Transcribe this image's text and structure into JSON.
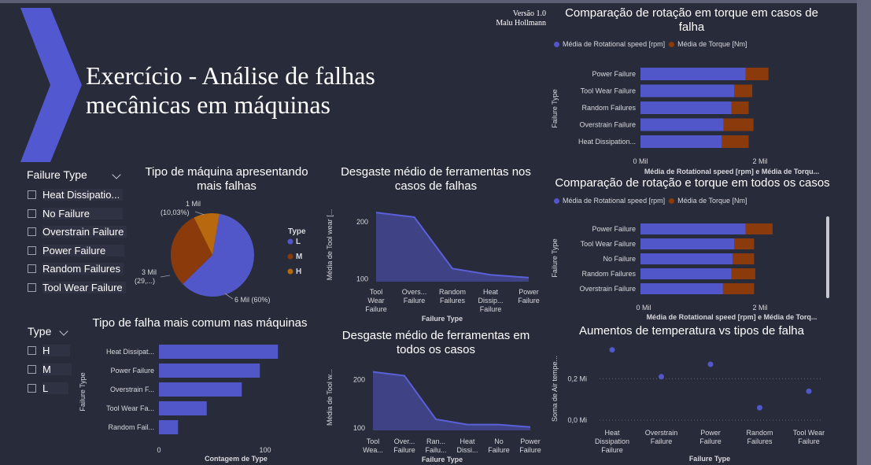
{
  "report": {
    "title_line1": "Exercício - Análise de falhas",
    "title_line2": "mecânicas em máquinas",
    "version": "Versão 1.0",
    "author": "Malu Hollmann"
  },
  "colors": {
    "background": "#282b39",
    "primary": "#5157c8",
    "torque": "#8b3a0c",
    "pie_h": "#b8680e",
    "arrow": "#5258cf"
  },
  "slicer_failure": {
    "header": "Failure Type",
    "items": [
      {
        "label": "Heat Dissipatio..."
      },
      {
        "label": "No Failure"
      },
      {
        "label": "Overstrain Failure"
      },
      {
        "label": "Power Failure"
      },
      {
        "label": "Random Failures"
      },
      {
        "label": "Tool Wear Failure"
      }
    ]
  },
  "slicer_type": {
    "header": "Type",
    "items": [
      {
        "label": "H"
      },
      {
        "label": "M"
      },
      {
        "label": "L"
      }
    ]
  },
  "pie": {
    "title_line1": "Tipo de máquina apresentando",
    "title_line2": "mais falhas",
    "legend_title": "Type",
    "legend": [
      "L",
      "M",
      "H"
    ],
    "label_l": "6 Mil (60%)",
    "label_m_1": "3 Mil",
    "label_m_2": "(29,...)",
    "label_h_1": "1 Mil",
    "label_h_2": "(10,03%)"
  },
  "bar_failtype": {
    "title": "Tipo de falha mais comum nas máquinas",
    "ylabel": "Failure Type",
    "xlabel": "Contagem de Type",
    "ticks": [
      "0",
      "100"
    ],
    "categories": [
      "Heat Dissipat...",
      "Power Failure",
      "Overstrain F...",
      "Tool Wear Fa...",
      "Random Fail..."
    ]
  },
  "area1": {
    "title_line1": "Desgaste médio de ferramentas nos",
    "title_line2": "casos de falhas",
    "ylabel": "Média de Tool wear [...",
    "xlabel": "Failure Type",
    "yticks": [
      "200",
      "100"
    ],
    "categories": [
      [
        "Tool",
        "Wear",
        "Failure"
      ],
      [
        "Overs...",
        "Failure"
      ],
      [
        "Random",
        "Failures"
      ],
      [
        "Heat",
        "Dissip...",
        "Failure"
      ],
      [
        "Power",
        "Failure"
      ]
    ]
  },
  "area2": {
    "title_line1": "Desgaste médio de ferramentas em",
    "title_line2": "todos os casos",
    "ylabel": "Média de Tool w...",
    "xlabel": "Failure Type",
    "yticks": [
      "200",
      "100"
    ],
    "categories": [
      [
        "Tool",
        "Wea..."
      ],
      [
        "Over...",
        "Failure"
      ],
      [
        "Ran...",
        "Failu..."
      ],
      [
        "Heat",
        "Dissi..."
      ],
      [
        "No",
        "Failure"
      ],
      [
        "Power",
        "Failure"
      ]
    ]
  },
  "hbar1": {
    "title_line1": "Comparação de rotação em torque em casos de",
    "title_line2": "falha",
    "legend_a": "Média de Rotational speed [rpm]",
    "legend_b": "Média de Torque [Nm]",
    "ylabel": "Failure Type",
    "xlabel": "Média de Rotational speed [rpm] e Média de Torqu...",
    "ticks": [
      "0 Mil",
      "2 Mil"
    ],
    "categories": [
      "Power Failure",
      "Tool Wear Failure",
      "Random Failures",
      "Overstrain Failure",
      "Heat Dissipation..."
    ]
  },
  "hbar2": {
    "title": "Comparação de rotação e torque em todos os casos",
    "legend_a": "Média de Rotational speed [rpm]",
    "legend_b": "Média de Torque [Nm]",
    "ylabel": "Failure Type",
    "xlabel": "Média de Rotational speed [rpm] e Média de Torq...",
    "ticks": [
      "0 Mil",
      "2 Mil"
    ],
    "categories": [
      "Power Failure",
      "Tool Wear Failure",
      "No Failure",
      "Random Failures",
      "Overstrain Failure"
    ]
  },
  "scatter": {
    "title": "Aumentos de temperatura vs tipos de falha",
    "ylabel": "Soma de Air tempe...",
    "xlabel": "Failure Type",
    "yticks": [
      "0,2 Mi",
      "0,0 Mi"
    ],
    "categories": [
      [
        "Heat",
        "Dissipation",
        "Failure"
      ],
      [
        "Overstrain",
        "Failure"
      ],
      [
        "Power",
        "Failure"
      ],
      [
        "Random",
        "Failures"
      ],
      [
        "Tool Wear",
        "Failure"
      ]
    ]
  },
  "chart_data": [
    {
      "type": "pie",
      "title": "Tipo de máquina apresentando mais falhas",
      "legend_title": "Type",
      "legend_placement": "right",
      "slices": [
        {
          "name": "L",
          "value": 6000,
          "percent": 60
        },
        {
          "name": "M",
          "value": 3000,
          "percent": 29.97
        },
        {
          "name": "H",
          "value": 1003,
          "percent": 10.03
        }
      ]
    },
    {
      "type": "bar",
      "orientation": "horizontal",
      "title": "Tipo de falha mais comum nas máquinas",
      "xlabel": "Contagem de Type",
      "ylabel": "Failure Type",
      "categories": [
        "Heat Dissipat...",
        "Power Failure",
        "Overstrain F...",
        "Tool Wear Fa...",
        "Random Fail..."
      ],
      "values": [
        112,
        95,
        78,
        45,
        18
      ],
      "xlim": [
        0,
        120
      ]
    },
    {
      "type": "area",
      "title": "Desgaste médio de ferramentas nos casos de falhas",
      "xlabel": "Failure Type",
      "ylabel": "Média de Tool wear [...",
      "categories": [
        "Tool Wear Failure",
        "Overs... Failure",
        "Random Failures",
        "Heat Dissip... Failure",
        "Power Failure"
      ],
      "values": [
        216,
        208,
        118,
        107,
        102
      ],
      "ylim": [
        95,
        230
      ]
    },
    {
      "type": "area",
      "title": "Desgaste médio de ferramentas em todos os casos",
      "xlabel": "Failure Type",
      "ylabel": "Média de Tool w...",
      "categories": [
        "Tool Wea...",
        "Over... Failure",
        "Ran... Failu...",
        "Heat Dissi...",
        "No Failure",
        "Power Failure"
      ],
      "values": [
        216,
        208,
        118,
        107,
        107,
        102
      ],
      "ylim": [
        95,
        230
      ]
    },
    {
      "type": "bar",
      "orientation": "horizontal",
      "stacked": true,
      "title": "Comparação de rotação em torque em casos de falha",
      "xlabel": "Média de Rotational speed [rpm] e Média de Torqu...",
      "ylabel": "Failure Type",
      "categories": [
        "Power Failure",
        "Tool Wear Failure",
        "Random Failures",
        "Overstrain Failure",
        "Heat Dissipation..."
      ],
      "series": [
        {
          "name": "Média de Rotational speed [rpm]",
          "values": [
            1760,
            1570,
            1520,
            1390,
            1360
          ]
        },
        {
          "name": "Média de Torque [Nm]",
          "values": [
            380,
            300,
            290,
            500,
            450
          ]
        }
      ],
      "xlim": [
        0,
        2200
      ]
    },
    {
      "type": "bar",
      "orientation": "horizontal",
      "stacked": true,
      "title": "Comparação de rotação e torque em todos os casos",
      "xlabel": "Média de Rotational speed [rpm] e Média de Torq...",
      "ylabel": "Failure Type",
      "categories": [
        "Power Failure",
        "Tool Wear Failure",
        "No Failure",
        "Random Failures",
        "Overstrain Failure"
      ],
      "series": [
        {
          "name": "Média de Rotational speed [rpm]",
          "values": [
            1760,
            1570,
            1540,
            1520,
            1380
          ]
        },
        {
          "name": "Média de Torque [Nm]",
          "values": [
            450,
            330,
            360,
            400,
            520
          ]
        }
      ],
      "xlim": [
        0,
        2400
      ]
    },
    {
      "type": "scatter",
      "title": "Aumentos de temperatura vs tipos de falha",
      "xlabel": "Failure Type",
      "ylabel": "Soma de Air tempe...",
      "categories": [
        "Heat Dissipation Failure",
        "Overstrain Failure",
        "Power Failure",
        "Random Failures",
        "Tool Wear Failure"
      ],
      "values": [
        0.34,
        0.21,
        0.27,
        0.06,
        0.14
      ],
      "ylim": [
        0,
        0.35
      ]
    }
  ]
}
